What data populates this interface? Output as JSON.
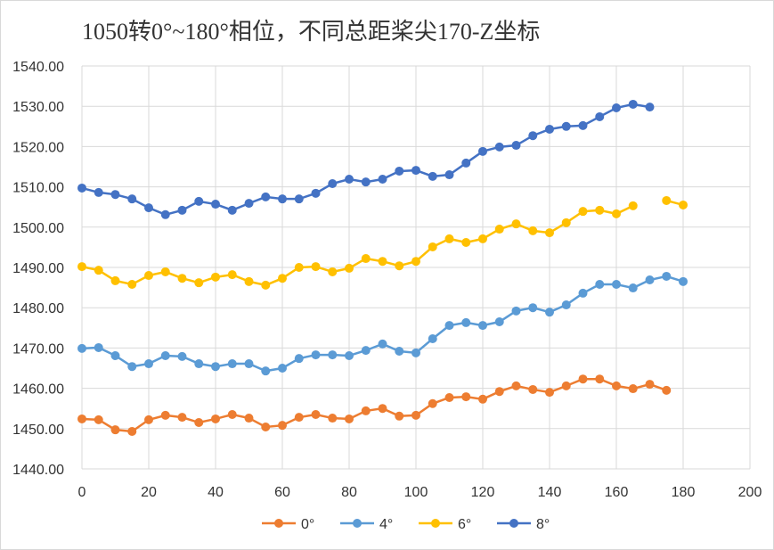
{
  "chart_data": {
    "type": "line",
    "title": "1050转0°~180°相位，不同总距桨尖170-Z坐标",
    "xlabel": "",
    "ylabel": "",
    "xlim": [
      0,
      200
    ],
    "ylim": [
      1440,
      1540
    ],
    "xticks": [
      "0",
      "20",
      "40",
      "60",
      "80",
      "100",
      "120",
      "140",
      "160",
      "180",
      "200"
    ],
    "yticks": [
      "1440.00",
      "1450.00",
      "1460.00",
      "1470.00",
      "1480.00",
      "1490.00",
      "1500.00",
      "1510.00",
      "1520.00",
      "1530.00",
      "1540.00"
    ],
    "grid": true,
    "legend_position": "bottom",
    "x": [
      0,
      5,
      10,
      15,
      20,
      25,
      30,
      35,
      40,
      45,
      50,
      55,
      60,
      65,
      70,
      75,
      80,
      85,
      90,
      95,
      100,
      105,
      110,
      115,
      120,
      125,
      130,
      135,
      140,
      145,
      150,
      155,
      160,
      165,
      170,
      175,
      180
    ],
    "series": [
      {
        "name": "0°",
        "color": "#ED7D31",
        "values": [
          1452.4,
          1452.2,
          1449.7,
          1449.3,
          1452.2,
          1453.3,
          1452.8,
          1451.5,
          1452.4,
          1453.5,
          1452.6,
          1450.4,
          1450.8,
          1452.8,
          1453.5,
          1452.6,
          1452.4,
          1454.4,
          1455.0,
          1453.1,
          1453.3,
          1456.2,
          1457.7,
          1457.9,
          1457.3,
          1459.2,
          1460.6,
          1459.7,
          1459.0,
          1460.6,
          1462.3,
          1462.3,
          1460.6,
          1459.9,
          1461.0,
          1459.5,
          null
        ]
      },
      {
        "name": "4°",
        "color": "#5B9BD5",
        "values": [
          1469.9,
          1470.1,
          1468.1,
          1465.4,
          1466.1,
          1468.1,
          1467.9,
          1466.1,
          1465.4,
          1466.1,
          1466.1,
          1464.3,
          1465.0,
          1467.4,
          1468.3,
          1468.3,
          1468.1,
          1469.4,
          1471.0,
          1469.2,
          1468.8,
          1472.3,
          1475.6,
          1476.3,
          1475.6,
          1476.5,
          1479.2,
          1480.0,
          1478.9,
          1480.7,
          1483.6,
          1485.8,
          1485.8,
          1484.9,
          1486.9,
          1487.8,
          1486.5
        ]
      },
      {
        "name": "6°",
        "color": "#FFC000",
        "values": [
          1490.2,
          1489.3,
          1486.7,
          1485.8,
          1488.0,
          1488.9,
          1487.3,
          1486.2,
          1487.6,
          1488.2,
          1486.5,
          1485.6,
          1487.3,
          1490.0,
          1490.2,
          1488.9,
          1489.8,
          1492.2,
          1491.5,
          1490.4,
          1491.5,
          1495.1,
          1497.1,
          1496.2,
          1497.1,
          1499.5,
          1500.8,
          1499.1,
          1498.6,
          1501.1,
          1503.9,
          1504.2,
          1503.3,
          1505.3,
          null,
          1506.6,
          1505.5
        ]
      },
      {
        "name": "8°",
        "color": "#4472C4",
        "values": [
          1509.7,
          1508.6,
          1508.1,
          1507.0,
          1504.8,
          1503.1,
          1504.2,
          1506.4,
          1505.7,
          1504.2,
          1505.9,
          1507.5,
          1507.0,
          1507.0,
          1508.4,
          1510.8,
          1511.9,
          1511.2,
          1511.9,
          1513.9,
          1514.1,
          1512.6,
          1513.0,
          1515.9,
          1518.8,
          1519.9,
          1520.3,
          1522.7,
          1524.3,
          1525.0,
          1525.2,
          1527.4,
          1529.6,
          1530.5,
          1529.8,
          null,
          null
        ]
      }
    ]
  }
}
